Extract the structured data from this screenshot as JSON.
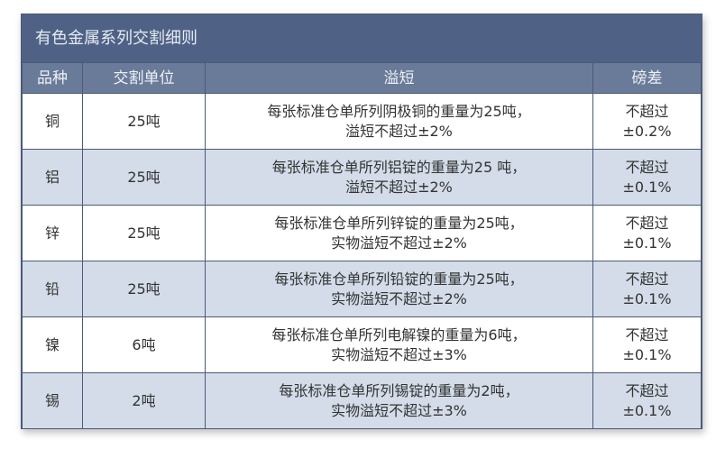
{
  "title": "有色金属系列交割细则",
  "headers": [
    "品种",
    "交割单位",
    "溢短",
    "磅差"
  ],
  "rows": [
    {
      "variety": "铜",
      "unit": "25吨",
      "overflow_line1": "每张标准仓单所列阴极铜的重量为25吨，",
      "overflow_line2": "溢短不超过±2%",
      "tolerance_line1": "不超过",
      "tolerance_line2": "±0.2%"
    },
    {
      "variety": "铝",
      "unit": "25吨",
      "overflow_line1": "每张标准仓单所列铝锭的重量为25 吨，",
      "overflow_line2": "溢短不超过±2%",
      "tolerance_line1": "不超过",
      "tolerance_line2": "±0.1%"
    },
    {
      "variety": "锌",
      "unit": "25吨",
      "overflow_line1": "每张标准仓单所列锌锭的重量为25吨，",
      "overflow_line2": "实物溢短不超过±2%",
      "tolerance_line1": "不超过",
      "tolerance_line2": "±0.1%"
    },
    {
      "variety": "铅",
      "unit": "25吨",
      "overflow_line1": "每张标准仓单所列铅锭的重量为25吨，",
      "overflow_line2": "实物溢短不超过±2%",
      "tolerance_line1": "不超过",
      "tolerance_line2": "±0.1%"
    },
    {
      "variety": "镍",
      "unit": "6吨",
      "overflow_line1": "每张标准仓单所列电解镍的重量为6吨，",
      "overflow_line2": "实物溢短不超过±3%",
      "tolerance_line1": "不超过",
      "tolerance_line2": "±0.1%"
    },
    {
      "variety": "锡",
      "unit": "2吨",
      "overflow_line1": "每张标准仓单所列锡锭的重量为2吨，",
      "overflow_line2": "实物溢短不超过±3%",
      "tolerance_line1": "不超过",
      "tolerance_line2": "±0.1%"
    }
  ]
}
